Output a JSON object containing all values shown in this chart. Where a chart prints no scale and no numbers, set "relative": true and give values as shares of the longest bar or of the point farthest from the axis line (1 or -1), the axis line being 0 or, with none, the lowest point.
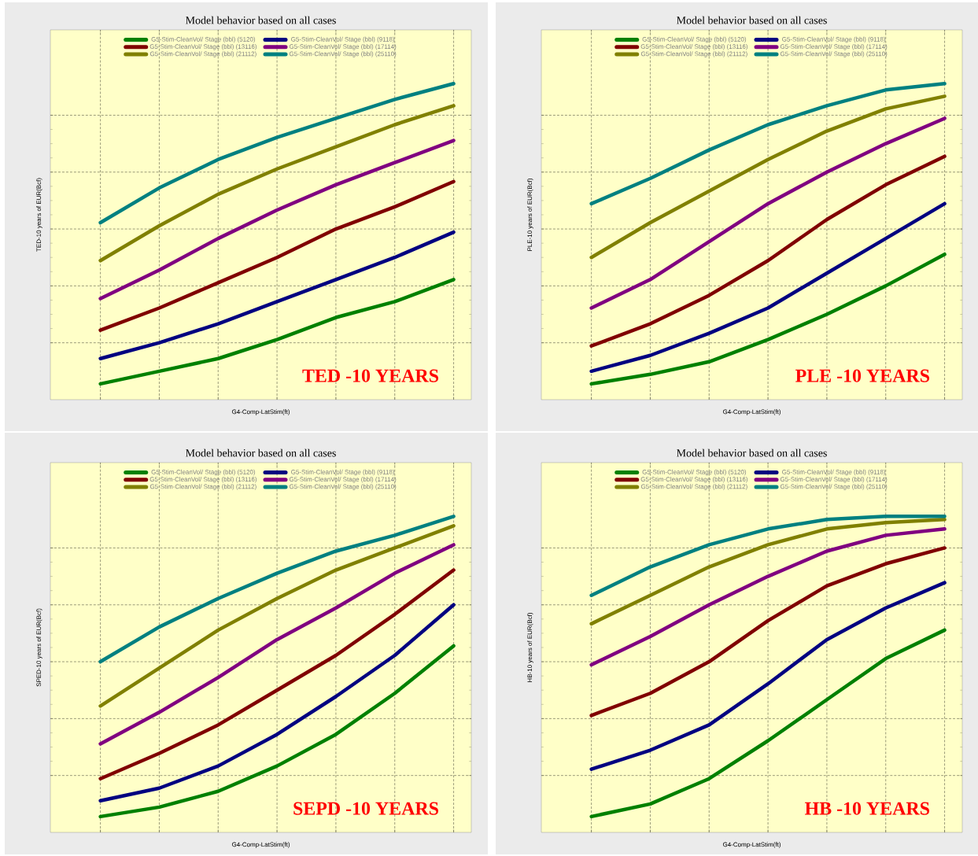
{
  "chart_data": [
    {
      "type": "line",
      "title": "Model behavior based on all cases",
      "xlabel": "G4-Comp-LatStim(ft)",
      "ylabel": "TED-10 years of  EUR(Bcf)",
      "annotations": [
        "TED -10 YEARS"
      ],
      "categories": [
        null,
        null,
        null,
        null,
        null,
        null,
        null
      ],
      "relative": true,
      "grid": true,
      "legend": "top",
      "marker": "none",
      "line_style": "solid",
      "series": [
        {
          "name": "G5-Stim-CleanVol/ Stage (bbl) (5120)",
          "color": "#008000",
          "values": [
            0.05,
            0.09,
            0.13,
            0.19,
            0.26,
            0.31,
            0.38
          ]
        },
        {
          "name": "G5-Stim-CleanVol/ Stage (bbl) (9118)",
          "color": "#000080",
          "values": [
            0.13,
            0.18,
            0.24,
            0.31,
            0.38,
            0.45,
            0.53
          ]
        },
        {
          "name": "G5-Stim-CleanVol/ Stage (bbl) (13116)",
          "color": "#800000",
          "values": [
            0.22,
            0.29,
            0.37,
            0.45,
            0.54,
            0.61,
            0.69
          ]
        },
        {
          "name": "G5-Stim-CleanVol/ Stage (bbl) (17114)",
          "color": "#800080",
          "values": [
            0.32,
            0.41,
            0.51,
            0.6,
            0.68,
            0.75,
            0.82
          ]
        },
        {
          "name": "G5-Stim-CleanVol/ Stage (bbl) (21112)",
          "color": "#808000",
          "values": [
            0.44,
            0.55,
            0.65,
            0.73,
            0.8,
            0.87,
            0.93
          ]
        },
        {
          "name": "G5-Stim-CleanVol/ Stage (bbl) (25110)",
          "color": "#008080",
          "values": [
            0.56,
            0.67,
            0.76,
            0.83,
            0.89,
            0.95,
            1
          ]
        }
      ]
    },
    {
      "type": "line",
      "title": "Model behavior based on all cases",
      "xlabel": "G4-Comp-LatStim(ft)",
      "ylabel": "PLE-10 years of  EUR(Bcf)",
      "annotations": [
        "PLE -10 YEARS"
      ],
      "categories": [
        null,
        null,
        null,
        null,
        null,
        null,
        null
      ],
      "relative": true,
      "grid": true,
      "legend": "top",
      "marker": "none",
      "line_style": "solid",
      "series": [
        {
          "name": "G5-Stim-CleanVol/ Stage (bbl) (5120)",
          "color": "#008000",
          "values": [
            0.05,
            0.08,
            0.12,
            0.19,
            0.27,
            0.36,
            0.46
          ]
        },
        {
          "name": "G5-Stim-CleanVol/ Stage (bbl) (9118)",
          "color": "#000080",
          "values": [
            0.09,
            0.14,
            0.21,
            0.29,
            0.4,
            0.51,
            0.62
          ]
        },
        {
          "name": "G5-Stim-CleanVol/ Stage (bbl) (13116)",
          "color": "#800000",
          "values": [
            0.17,
            0.24,
            0.33,
            0.44,
            0.57,
            0.68,
            0.77
          ]
        },
        {
          "name": "G5-Stim-CleanVol/ Stage (bbl) (17114)",
          "color": "#800080",
          "values": [
            0.29,
            0.38,
            0.5,
            0.62,
            0.72,
            0.81,
            0.89
          ]
        },
        {
          "name": "G5-Stim-CleanVol/ Stage (bbl) (21112)",
          "color": "#808000",
          "values": [
            0.45,
            0.56,
            0.66,
            0.76,
            0.85,
            0.92,
            0.96
          ]
        },
        {
          "name": "G5-Stim-CleanVol/ Stage (bbl) (25110)",
          "color": "#008080",
          "values": [
            0.62,
            0.7,
            0.79,
            0.87,
            0.93,
            0.98,
            1
          ]
        }
      ]
    },
    {
      "type": "line",
      "title": "Model behavior based on all cases",
      "xlabel": "G4-Comp-LatStim(ft)",
      "ylabel": "SPED-10 years  of  EUR(Bcf)",
      "annotations": [
        "SEPD -10 YEARS"
      ],
      "categories": [
        null,
        null,
        null,
        null,
        null,
        null,
        null
      ],
      "relative": true,
      "grid": true,
      "legend": "top",
      "marker": "none",
      "line_style": "solid",
      "series": [
        {
          "name": "G5-Stim-CleanVol/ Stage (bbl) (5120)",
          "color": "#008000",
          "values": [
            0.05,
            0.08,
            0.13,
            0.21,
            0.31,
            0.44,
            0.59
          ]
        },
        {
          "name": "G5-Stim-CleanVol/ Stage (bbl) (9118)",
          "color": "#000080",
          "values": [
            0.1,
            0.14,
            0.21,
            0.31,
            0.43,
            0.56,
            0.72
          ]
        },
        {
          "name": "G5-Stim-CleanVol/ Stage (bbl) (13116)",
          "color": "#800000",
          "values": [
            0.17,
            0.25,
            0.34,
            0.45,
            0.56,
            0.69,
            0.83
          ]
        },
        {
          "name": "G5-Stim-CleanVol/ Stage (bbl) (17114)",
          "color": "#800080",
          "values": [
            0.28,
            0.38,
            0.49,
            0.61,
            0.71,
            0.82,
            0.91
          ]
        },
        {
          "name": "G5-Stim-CleanVol/ Stage (bbl) (21112)",
          "color": "#808000",
          "values": [
            0.4,
            0.52,
            0.64,
            0.74,
            0.83,
            0.9,
            0.97
          ]
        },
        {
          "name": "G5-Stim-CleanVol/ Stage (bbl) (25110)",
          "color": "#008080",
          "values": [
            0.54,
            0.65,
            0.74,
            0.82,
            0.89,
            0.94,
            1
          ]
        }
      ]
    },
    {
      "type": "line",
      "title": "Model behavior based on all cases",
      "xlabel": "G4-Comp-LatStim(ft)",
      "ylabel": "HB-10 years of  EUR(Bcf)",
      "annotations": [
        "HB -10 YEARS"
      ],
      "categories": [
        null,
        null,
        null,
        null,
        null,
        null,
        null
      ],
      "relative": true,
      "grid": true,
      "legend": "top",
      "marker": "none",
      "line_style": "solid",
      "series": [
        {
          "name": "G5-Stim-CleanVol/ Stage (bbl) (5120)",
          "color": "#008000",
          "values": [
            0.05,
            0.09,
            0.17,
            0.29,
            0.42,
            0.55,
            0.64
          ]
        },
        {
          "name": "G5-Stim-CleanVol/ Stage (bbl) (9118)",
          "color": "#000080",
          "values": [
            0.2,
            0.26,
            0.34,
            0.47,
            0.61,
            0.71,
            0.79
          ]
        },
        {
          "name": "G5-Stim-CleanVol/ Stage (bbl) (13116)",
          "color": "#800000",
          "values": [
            0.37,
            0.44,
            0.54,
            0.67,
            0.78,
            0.85,
            0.9
          ]
        },
        {
          "name": "G5-Stim-CleanVol/ Stage (bbl) (17114)",
          "color": "#800080",
          "values": [
            0.53,
            0.62,
            0.72,
            0.81,
            0.89,
            0.94,
            0.96
          ]
        },
        {
          "name": "G5-Stim-CleanVol/ Stage (bbl) (21112)",
          "color": "#808000",
          "values": [
            0.66,
            0.75,
            0.84,
            0.91,
            0.96,
            0.98,
            0.99
          ]
        },
        {
          "name": "G5-Stim-CleanVol/ Stage (bbl) (25110)",
          "color": "#008080",
          "values": [
            0.75,
            0.84,
            0.91,
            0.96,
            0.99,
            1,
            1
          ]
        }
      ]
    }
  ]
}
